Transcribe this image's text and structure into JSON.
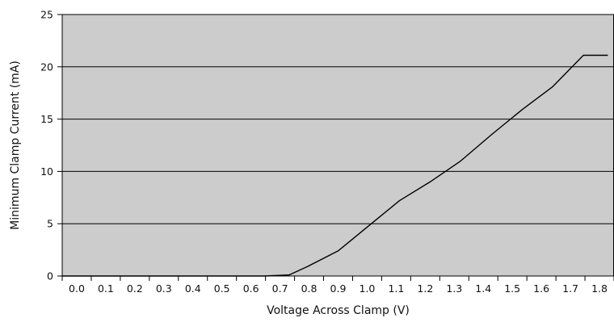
{
  "chart_data": {
    "type": "line",
    "title": "",
    "xlabel": "Voltage Across Clamp (V)",
    "ylabel": "Minimum Clamp Current (mA)",
    "xlim": [
      0.0,
      1.8
    ],
    "ylim": [
      0,
      25
    ],
    "x_ticks": [
      "0.0",
      "0.1",
      "0.2",
      "0.3",
      "0.4",
      "0.5",
      "0.6",
      "0.7",
      "0.8",
      "0.9",
      "1.0",
      "1.1",
      "1.2",
      "1.3",
      "1.4",
      "1.5",
      "1.6",
      "1.7",
      "1.8"
    ],
    "y_ticks": [
      "0",
      "5",
      "10",
      "15",
      "20",
      "25"
    ],
    "grid": "horizontal",
    "legend": "none",
    "series": [
      {
        "x": [
          0.0,
          0.66,
          0.74,
          0.8,
          0.9,
          1.0,
          1.1,
          1.2,
          1.3,
          1.4,
          1.5,
          1.6,
          1.7,
          1.78
        ],
        "y": [
          0,
          0,
          0.1,
          0.9,
          2.4,
          4.8,
          7.2,
          9.0,
          11.0,
          13.5,
          15.9,
          18.1,
          21.1,
          21.1
        ]
      }
    ],
    "colors": {
      "plot_bg": "#cccccc",
      "line": "#000000",
      "grid": "#000000"
    }
  }
}
